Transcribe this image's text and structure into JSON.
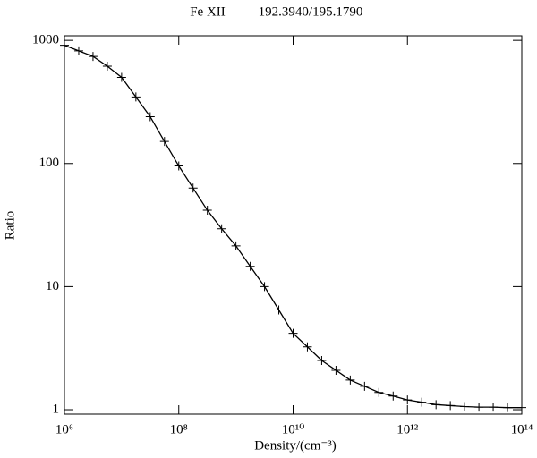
{
  "chart_data": {
    "type": "line",
    "title": "Fe XII",
    "subtitle": "192.3940/195.1790",
    "x_label": "Density/(cm⁻³)",
    "y_label": "Ratio",
    "log_x": true,
    "log_y": true,
    "xlim": [
      1000000,
      100000000000000.0
    ],
    "ylim": [
      0.92,
      1090
    ],
    "xticks": [
      {
        "value": 1000000,
        "label": "10⁶"
      },
      {
        "value": 100000000,
        "label": "10⁸"
      },
      {
        "value": 10000000000,
        "label": "10¹⁰"
      },
      {
        "value": 1000000000000,
        "label": "10¹²"
      },
      {
        "value": 100000000000000.0,
        "label": "10¹⁴"
      }
    ],
    "yticks": [
      1,
      10,
      100,
      1000
    ],
    "marker": "plus",
    "series": [
      {
        "color": "#000000",
        "x": [
          1000000,
          1778279,
          3162278,
          5623413,
          10000000,
          17782794,
          31622777,
          56234133,
          100000000,
          177827941,
          316227766,
          562341325,
          1000000000,
          1778279410,
          3162277660,
          5623413252,
          10000000000,
          17782794100,
          31622776602,
          56234132519,
          100000000000,
          177827941004,
          316227766017,
          562341325190,
          1000000000000,
          1778279410039,
          3162277660168,
          5623413251903,
          10000000000000.0,
          17782794100389.0,
          31622776601684.0,
          56234132519035.0,
          100000000000000.0
        ],
        "values": [
          912,
          822,
          741,
          617,
          501,
          347,
          240,
          151,
          95.5,
          63.1,
          41.7,
          29.5,
          21.4,
          14.6,
          10.0,
          6.46,
          4.17,
          3.24,
          2.51,
          2.09,
          1.74,
          1.55,
          1.38,
          1.29,
          1.2,
          1.15,
          1.1,
          1.08,
          1.06,
          1.05,
          1.05,
          1.04,
          1.04
        ]
      }
    ]
  }
}
